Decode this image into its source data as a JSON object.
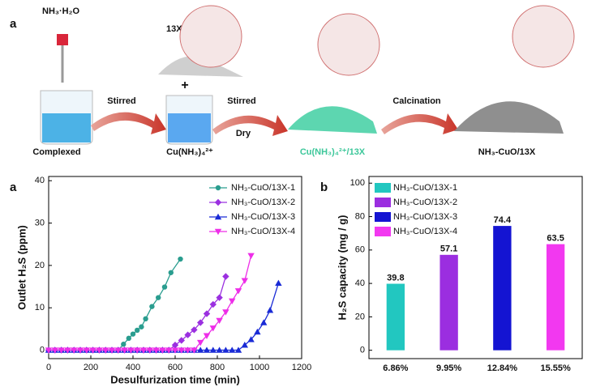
{
  "schematic": {
    "panel": "a",
    "reagent": "NH₃·H₂O",
    "zeolite": "13X",
    "plus": "+",
    "step1": "Stirred",
    "step2a": "Stirred",
    "step2b": "Dry",
    "step3": "Calcination",
    "stage1": "Complexed",
    "stage2": "Cu(NH₃)₄²⁺",
    "stage3": "Cu(NH₃)₄²⁺/13X",
    "stage4": "NH₃-CuO/13X"
  },
  "chart_data": [
    {
      "type": "line",
      "panel": "a",
      "x_label": "Desulfurization time (min)",
      "y_label": "Outlet H₂S (ppm)",
      "xlim": [
        0,
        1200
      ],
      "xticks": [
        0,
        200,
        400,
        600,
        800,
        1000,
        1200
      ],
      "ylim": [
        -2,
        41
      ],
      "yticks": [
        0,
        10,
        20,
        30,
        40
      ],
      "series": [
        {
          "name": "NH₃-CuO/13X-1",
          "color": "#2a9d8f",
          "marker": "circle",
          "x": [
            0,
            30,
            60,
            90,
            120,
            150,
            180,
            210,
            240,
            270,
            300,
            330,
            355,
            380,
            400,
            420,
            440,
            460,
            490,
            520,
            550,
            580,
            625
          ],
          "values": [
            0,
            0,
            0,
            0,
            0,
            0,
            0,
            0,
            0,
            0,
            0,
            0,
            1.4,
            2.8,
            3.8,
            4.7,
            5.5,
            7.4,
            10.3,
            12.4,
            14.9,
            18.3,
            21.5
          ]
        },
        {
          "name": "NH₃-CuO/13X-2",
          "color": "#9b30e0",
          "marker": "diamond",
          "x": [
            0,
            30,
            60,
            90,
            120,
            150,
            180,
            210,
            240,
            270,
            300,
            330,
            360,
            390,
            420,
            450,
            480,
            510,
            540,
            570,
            600,
            630,
            660,
            690,
            720,
            750,
            780,
            810,
            840
          ],
          "values": [
            0,
            0,
            0,
            0,
            0,
            0,
            0,
            0,
            0,
            0,
            0,
            0,
            0,
            0,
            0,
            0,
            0,
            0,
            0,
            0,
            1.2,
            2.3,
            3.6,
            4.8,
            6.5,
            8.6,
            10.8,
            12.4,
            17.4
          ]
        },
        {
          "name": "NH₃-CuO/13X-3",
          "color": "#1a2bd6",
          "marker": "triangle-up",
          "x": [
            0,
            30,
            60,
            90,
            120,
            150,
            180,
            210,
            240,
            270,
            300,
            330,
            360,
            390,
            420,
            450,
            480,
            510,
            540,
            570,
            600,
            630,
            660,
            690,
            720,
            750,
            780,
            810,
            840,
            870,
            900,
            930,
            960,
            990,
            1020,
            1050,
            1090
          ],
          "values": [
            0,
            0,
            0,
            0,
            0,
            0,
            0,
            0,
            0,
            0,
            0,
            0,
            0,
            0,
            0,
            0,
            0,
            0,
            0,
            0,
            0,
            0,
            0,
            0,
            0,
            0,
            0,
            0,
            0,
            0,
            0,
            1.2,
            2.5,
            4.3,
            6.5,
            9.4,
            15.8
          ]
        },
        {
          "name": "NH₃-CuO/13X-4",
          "color": "#ee2ee8",
          "marker": "triangle-down",
          "x": [
            0,
            30,
            60,
            90,
            120,
            150,
            180,
            210,
            240,
            270,
            300,
            330,
            360,
            390,
            420,
            450,
            480,
            510,
            540,
            570,
            600,
            630,
            660,
            690,
            720,
            750,
            780,
            810,
            840,
            870,
            900,
            930,
            960
          ],
          "values": [
            0,
            0,
            0,
            0,
            0,
            0,
            0,
            0,
            0,
            0,
            0,
            0,
            0,
            0,
            0,
            0,
            0,
            0,
            0,
            0,
            0,
            0,
            0,
            0,
            1.8,
            3.4,
            5.2,
            7.0,
            9.0,
            11.6,
            14.0,
            16.4,
            22.3
          ]
        }
      ]
    },
    {
      "type": "bar",
      "panel": "b",
      "y_label": "H₂S capacity (mg / g)",
      "categories": [
        "6.86%",
        "9.95%",
        "12.84%",
        "15.55%"
      ],
      "values": [
        39.8,
        57.1,
        74.4,
        63.5
      ],
      "colors": [
        "#22c7c0",
        "#9b2ee0",
        "#1414d2",
        "#f238f0"
      ],
      "legend": [
        "NH₃-CuO/13X-1",
        "NH₃-CuO/13X-2",
        "NH₃-CuO/13X-3",
        "NH₃-CuO/13X-4"
      ],
      "ylim": [
        -5,
        104
      ],
      "yticks": [
        0,
        20,
        40,
        60,
        80,
        100
      ]
    }
  ]
}
